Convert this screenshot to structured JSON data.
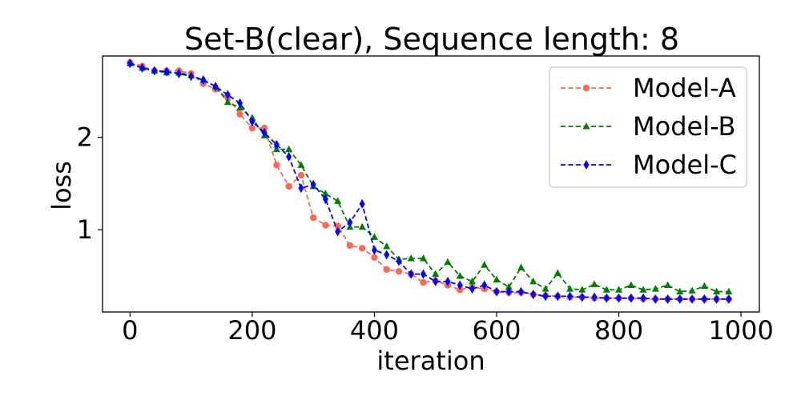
{
  "chart_data": {
    "type": "line",
    "title": "Set-B(clear), Sequence length: 8",
    "xlabel": "iteration",
    "ylabel": "loss",
    "xlim": [
      -45,
      1030
    ],
    "ylim": [
      0.11,
      2.88
    ],
    "xticks": [
      0,
      200,
      400,
      600,
      800,
      1000
    ],
    "yticks": [
      1,
      2
    ],
    "grid": false,
    "legend_position": "top-right",
    "x": [
      0,
      20,
      40,
      60,
      80,
      100,
      120,
      140,
      160,
      180,
      200,
      220,
      240,
      260,
      280,
      300,
      320,
      340,
      360,
      380,
      400,
      420,
      440,
      460,
      480,
      500,
      520,
      540,
      560,
      580,
      600,
      620,
      640,
      660,
      680,
      700,
      720,
      740,
      760,
      780,
      800,
      820,
      840,
      860,
      880,
      900,
      920,
      940,
      960,
      980
    ],
    "series": [
      {
        "name": "Model-A",
        "color": "#fa6a50",
        "marker": "circle",
        "values": [
          2.81,
          2.77,
          2.72,
          2.72,
          2.72,
          2.69,
          2.58,
          2.52,
          2.43,
          2.25,
          2.1,
          2.1,
          1.7,
          1.47,
          1.59,
          1.13,
          1.05,
          1.04,
          0.83,
          0.8,
          0.7,
          0.57,
          0.55,
          0.52,
          0.43,
          0.45,
          0.4,
          0.35,
          0.38,
          0.36,
          0.33,
          0.32,
          0.32,
          0.3,
          0.29,
          0.28,
          0.27,
          0.27,
          0.26,
          0.26,
          0.26,
          0.26,
          0.25,
          0.25,
          0.25,
          0.25,
          0.25,
          0.25,
          0.25,
          0.25
        ]
      },
      {
        "name": "Model-B",
        "color": "#007f00",
        "marker": "triangle",
        "values": [
          2.8,
          2.75,
          2.72,
          2.7,
          2.7,
          2.67,
          2.62,
          2.55,
          2.38,
          2.32,
          2.21,
          2.02,
          1.87,
          1.87,
          1.7,
          1.47,
          1.39,
          1.31,
          1.03,
          1.03,
          0.92,
          0.82,
          0.68,
          0.69,
          0.69,
          0.52,
          0.65,
          0.5,
          0.44,
          0.62,
          0.46,
          0.38,
          0.59,
          0.44,
          0.36,
          0.53,
          0.36,
          0.35,
          0.41,
          0.35,
          0.35,
          0.4,
          0.35,
          0.36,
          0.4,
          0.33,
          0.34,
          0.39,
          0.33,
          0.33
        ]
      },
      {
        "name": "Model-C",
        "color": "#0000ff",
        "marker": "diamond",
        "values": [
          2.8,
          2.75,
          2.72,
          2.71,
          2.69,
          2.66,
          2.62,
          2.55,
          2.46,
          2.37,
          2.17,
          2.05,
          1.92,
          1.79,
          1.45,
          1.49,
          1.33,
          0.98,
          1.08,
          1.28,
          0.78,
          0.73,
          0.66,
          0.52,
          0.52,
          0.44,
          0.44,
          0.4,
          0.36,
          0.4,
          0.33,
          0.33,
          0.33,
          0.3,
          0.28,
          0.28,
          0.28,
          0.27,
          0.27,
          0.26,
          0.26,
          0.26,
          0.26,
          0.25,
          0.25,
          0.25,
          0.25,
          0.25,
          0.25,
          0.25
        ]
      }
    ]
  }
}
